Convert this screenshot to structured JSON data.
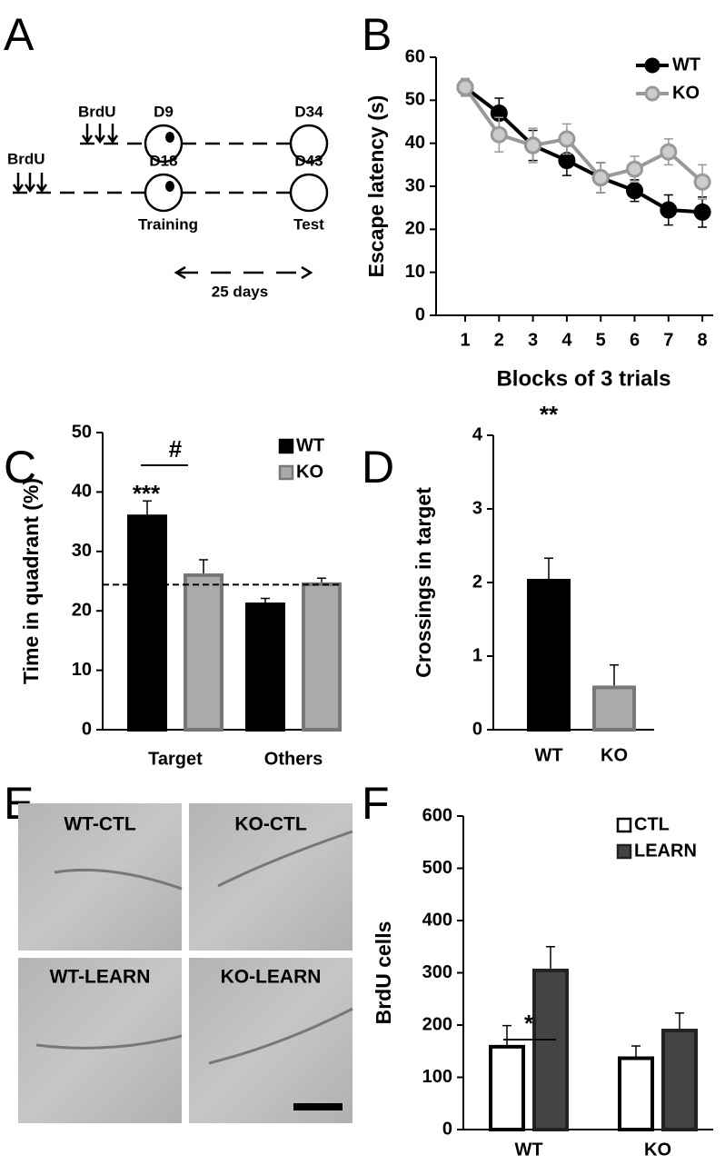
{
  "panel_labels": [
    "A",
    "B",
    "C",
    "D",
    "E",
    "F"
  ],
  "diagram": {
    "rows": [
      {
        "drug": "BrdU",
        "train_day": "D9",
        "test_day": "D34"
      },
      {
        "drug": "BrdU",
        "train_day": "D18",
        "test_day": "D43"
      }
    ],
    "training": "Training",
    "test": "Test",
    "interval": "25 days"
  },
  "images": [
    "WT-CTL",
    "KO-CTL",
    "WT-LEARN",
    "KO-LEARN"
  ],
  "chart_data": [
    {
      "type": "line",
      "xlabel": "Blocks of 3 trials",
      "ylabel": "Escape latency (s)",
      "categories": [
        "1",
        "2",
        "3",
        "4",
        "5",
        "6",
        "7",
        "8"
      ],
      "series": [
        {
          "name": "WT",
          "color": "#000000",
          "values": [
            53,
            47,
            39.5,
            36,
            32,
            29,
            24.5,
            24
          ],
          "errors": [
            2,
            3.5,
            3.5,
            3.5,
            3.5,
            2.5,
            3.5,
            3.5
          ]
        },
        {
          "name": "KO",
          "color": "#999999",
          "values": [
            53,
            42,
            39.5,
            41,
            32,
            34,
            38,
            31
          ],
          "errors": [
            2,
            4,
            4,
            3.5,
            3.5,
            3,
            3,
            4
          ]
        }
      ],
      "ylim": [
        0,
        60
      ],
      "yticks": [
        0,
        10,
        20,
        30,
        40,
        50,
        60
      ],
      "legend": "top-right"
    },
    {
      "type": "bar",
      "ylabel": "Time in quadrant (%)",
      "categories": [
        "Target",
        "Others"
      ],
      "series": [
        {
          "name": "WT",
          "color": "#000000",
          "edgecolor": "#000000",
          "values": [
            36.2,
            21.4
          ],
          "errors": [
            2.3,
            0.7
          ]
        },
        {
          "name": "KO",
          "color": "#aaaaaa",
          "edgecolor": "#777777",
          "values": [
            26.3,
            24.8
          ],
          "errors": [
            2.3,
            0.7
          ]
        }
      ],
      "ylim": [
        0,
        50
      ],
      "yticks": [
        0,
        10,
        20,
        30,
        40,
        50
      ],
      "ref_line": 24.4,
      "annotations": [
        {
          "text": "***"
        },
        {
          "text": "#"
        }
      ],
      "legend": "top-right"
    },
    {
      "type": "bar",
      "ylabel": "Crossings in target",
      "categories": [
        "WT",
        "KO"
      ],
      "series": [
        {
          "colors": [
            "#000000",
            "#aaaaaa"
          ],
          "edgecolors": [
            "#000000",
            "#777777"
          ],
          "values": [
            2.05,
            0.6
          ],
          "errors": [
            0.28,
            0.28
          ]
        }
      ],
      "ylim": [
        0,
        4
      ],
      "yticks": [
        0,
        1,
        2,
        3,
        4
      ],
      "annotations": [
        {
          "text": "**"
        }
      ]
    },
    {
      "type": "bar",
      "ylabel": "BrdU cells",
      "categories": [
        "WT",
        "KO"
      ],
      "series": [
        {
          "name": "CTL",
          "color": "#ffffff",
          "edgecolor": "#000000",
          "values": [
            162,
            140
          ],
          "errors": [
            37,
            20
          ]
        },
        {
          "name": "LEARN",
          "color": "#444444",
          "edgecolor": "#222222",
          "values": [
            308,
            193
          ],
          "errors": [
            42,
            30
          ]
        }
      ],
      "ylim": [
        0,
        600
      ],
      "yticks": [
        0,
        100,
        200,
        300,
        400,
        500,
        600
      ],
      "annotations": [
        {
          "text": "*"
        }
      ],
      "legend": "top-right"
    }
  ]
}
